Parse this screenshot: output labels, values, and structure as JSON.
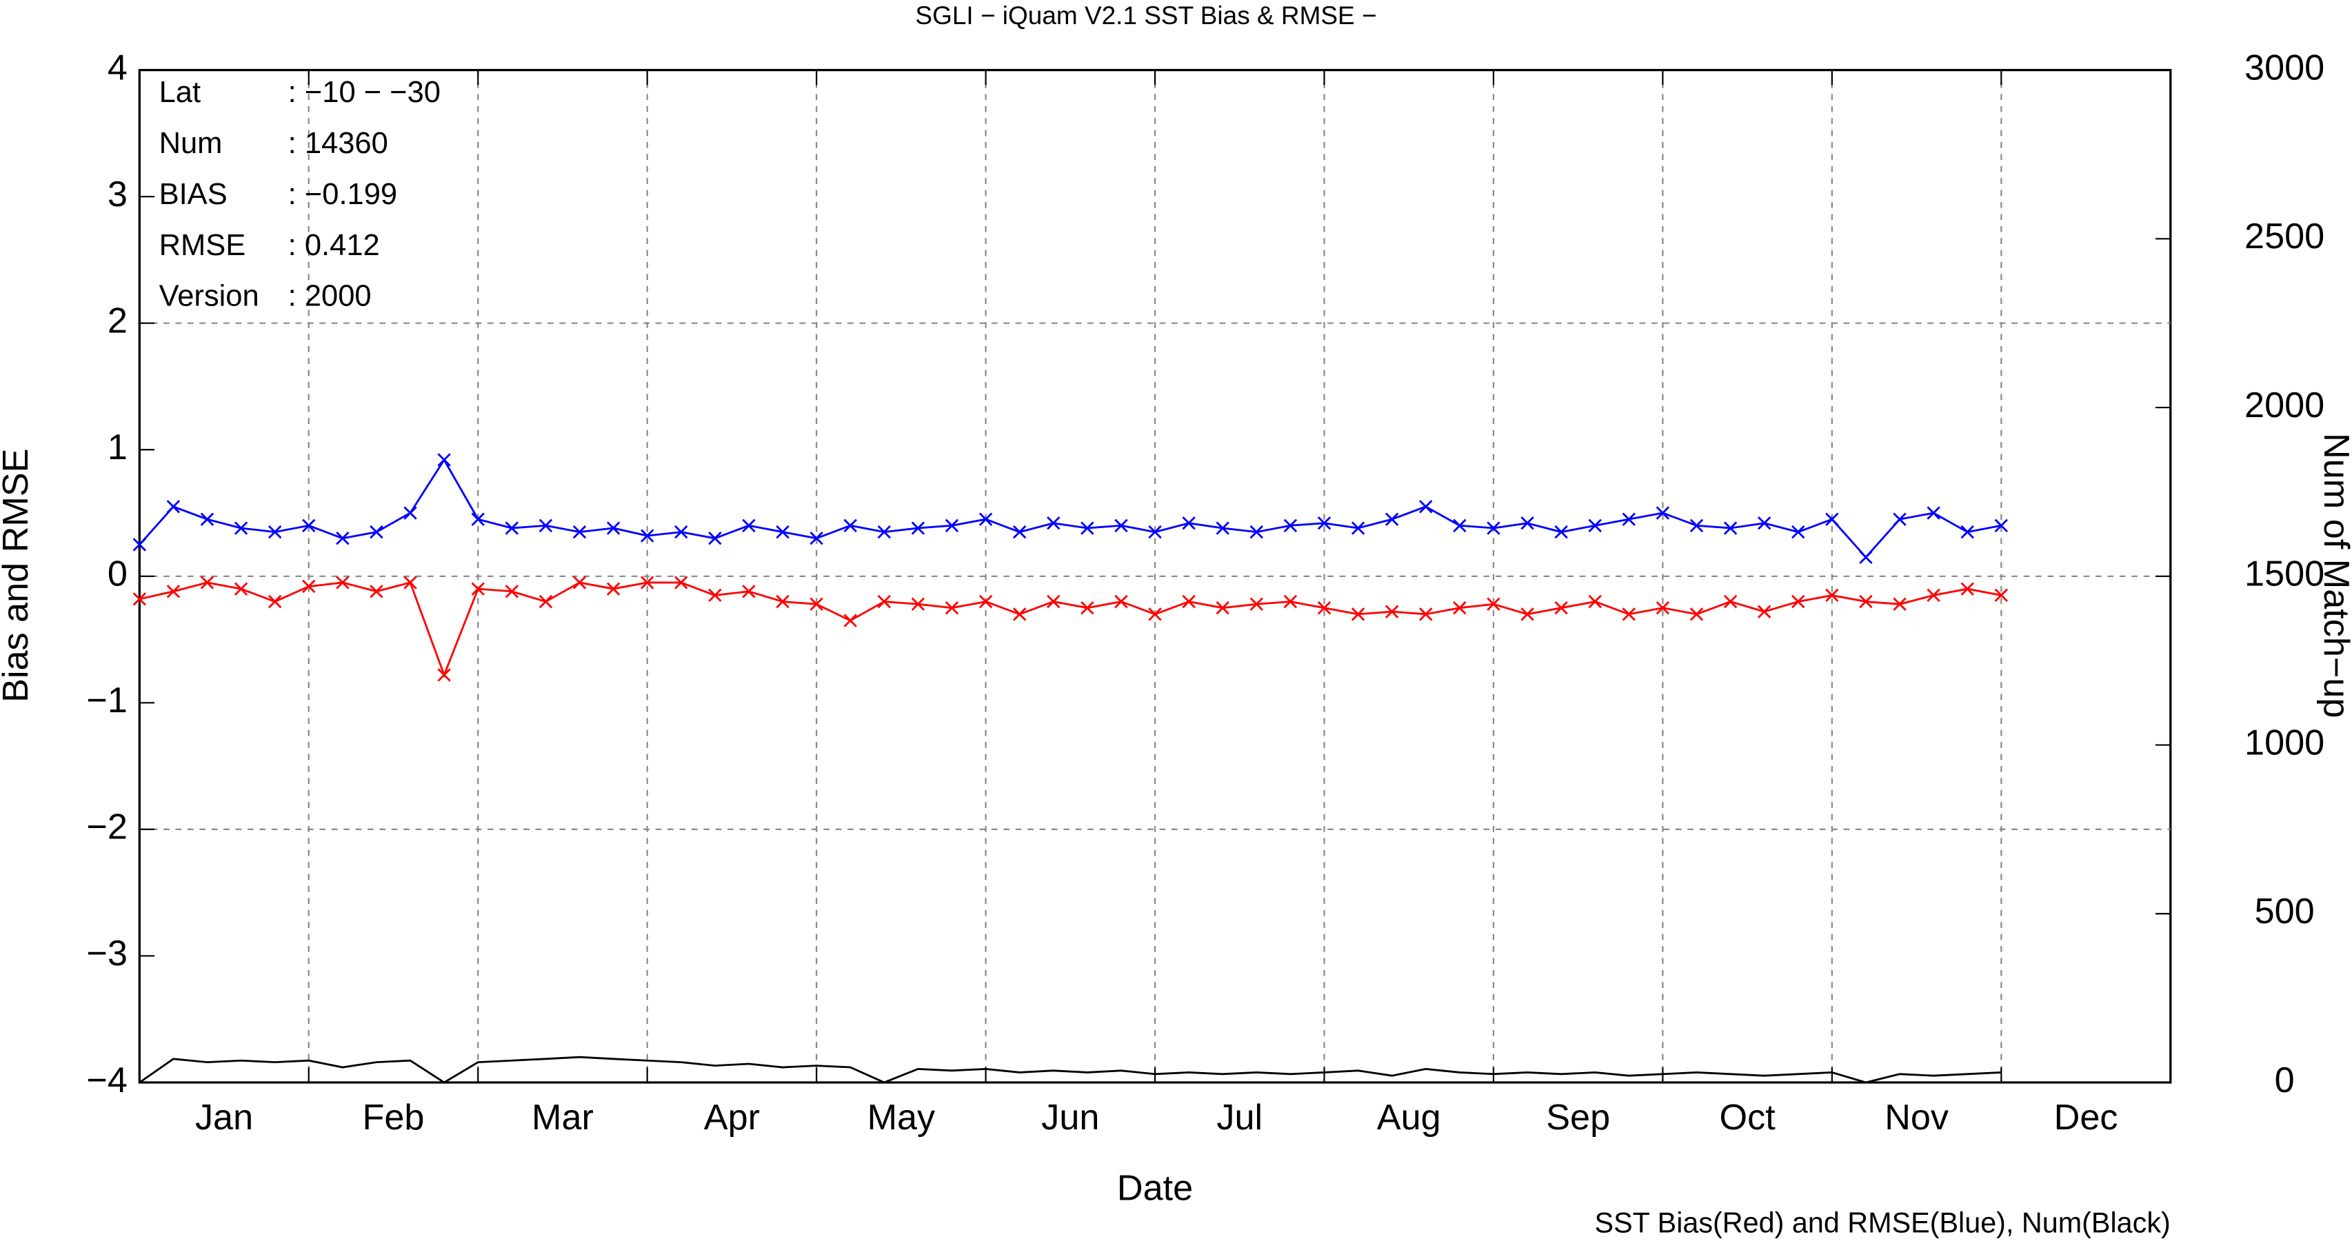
{
  "chart_data": {
    "type": "line",
    "title": "SGLI − iQuam V2.1 SST Bias & RMSE  −",
    "x_label": "Date",
    "y_label": "Bias and RMSE",
    "y2_label": "Num of Match−up",
    "footnote": "SST Bias(Red) and RMSE(Blue), Num(Black)",
    "annotations": [
      {
        "label": "Lat",
        "value": ": −10 − −30"
      },
      {
        "label": "Num",
        "value": ": 14360"
      },
      {
        "label": "BIAS",
        "value": ": −0.199"
      },
      {
        "label": "RMSE",
        "value": ": 0.412"
      },
      {
        "label": "Version",
        "value": ": 2000"
      }
    ],
    "categories": [
      "Jan",
      "Feb",
      "Mar",
      "Apr",
      "May",
      "Jun",
      "Jul",
      "Aug",
      "Sep",
      "Oct",
      "Nov",
      "Dec"
    ],
    "xlim": [
      0,
      12
    ],
    "ylim": [
      -4,
      4
    ],
    "yticks": [
      -4,
      -3,
      -2,
      -1,
      0,
      1,
      2,
      3,
      4
    ],
    "y2lim": [
      0,
      3000
    ],
    "y2ticks": [
      0,
      500,
      1000,
      1500,
      2000,
      2500,
      3000
    ],
    "grid": true,
    "grid_y": [
      -2,
      0,
      2
    ],
    "x": [
      0,
      0.2,
      0.4,
      0.6,
      0.8,
      1.0,
      1.2,
      1.4,
      1.6,
      1.8,
      2.0,
      2.2,
      2.4,
      2.6,
      2.8,
      3.0,
      3.2,
      3.4,
      3.6,
      3.8,
      4.0,
      4.2,
      4.4,
      4.6,
      4.8,
      5.0,
      5.2,
      5.4,
      5.6,
      5.8,
      6.0,
      6.2,
      6.4,
      6.6,
      6.8,
      7.0,
      7.2,
      7.4,
      7.6,
      7.8,
      8.0,
      8.2,
      8.4,
      8.6,
      8.8,
      9.0,
      9.2,
      9.4,
      9.6,
      9.8,
      10.0,
      10.2,
      10.4,
      10.6,
      10.8,
      11.0
    ],
    "series": [
      {
        "color": "#ff0000",
        "marker": "x",
        "values": [
          -0.18,
          -0.12,
          -0.05,
          -0.1,
          -0.2,
          -0.08,
          -0.05,
          -0.12,
          -0.05,
          -0.78,
          -0.1,
          -0.12,
          -0.2,
          -0.05,
          -0.1,
          -0.05,
          -0.05,
          -0.15,
          -0.12,
          -0.2,
          -0.22,
          -0.35,
          -0.2,
          -0.22,
          -0.25,
          -0.2,
          -0.3,
          -0.2,
          -0.25,
          -0.2,
          -0.3,
          -0.2,
          -0.25,
          -0.22,
          -0.2,
          -0.25,
          -0.3,
          -0.28,
          -0.3,
          -0.25,
          -0.22,
          -0.3,
          -0.25,
          -0.2,
          -0.3,
          -0.25,
          -0.3,
          -0.2,
          -0.28,
          -0.2,
          -0.15,
          -0.2,
          -0.22,
          -0.15,
          -0.1,
          -0.15
        ]
      },
      {
        "color": "#0000ff",
        "marker": "x",
        "values": [
          0.25,
          0.55,
          0.45,
          0.38,
          0.35,
          0.4,
          0.3,
          0.35,
          0.5,
          0.92,
          0.45,
          0.38,
          0.4,
          0.35,
          0.38,
          0.32,
          0.35,
          0.3,
          0.4,
          0.35,
          0.3,
          0.4,
          0.35,
          0.38,
          0.4,
          0.45,
          0.35,
          0.42,
          0.38,
          0.4,
          0.35,
          0.42,
          0.38,
          0.35,
          0.4,
          0.42,
          0.38,
          0.45,
          0.55,
          0.4,
          0.38,
          0.42,
          0.35,
          0.4,
          0.45,
          0.5,
          0.4,
          0.38,
          0.42,
          0.35,
          0.45,
          0.15,
          0.45,
          0.5,
          0.35,
          0.4
        ]
      },
      {
        "color": "#000000",
        "axis": "y2",
        "values": [
          0,
          70,
          60,
          65,
          60,
          65,
          45,
          60,
          65,
          0,
          60,
          65,
          70,
          75,
          70,
          65,
          60,
          50,
          55,
          45,
          50,
          45,
          0,
          40,
          35,
          40,
          30,
          35,
          30,
          35,
          25,
          30,
          25,
          30,
          25,
          30,
          35,
          20,
          40,
          30,
          25,
          30,
          25,
          30,
          20,
          25,
          30,
          25,
          20,
          25,
          30,
          0,
          25,
          20,
          25,
          30
        ]
      }
    ]
  }
}
